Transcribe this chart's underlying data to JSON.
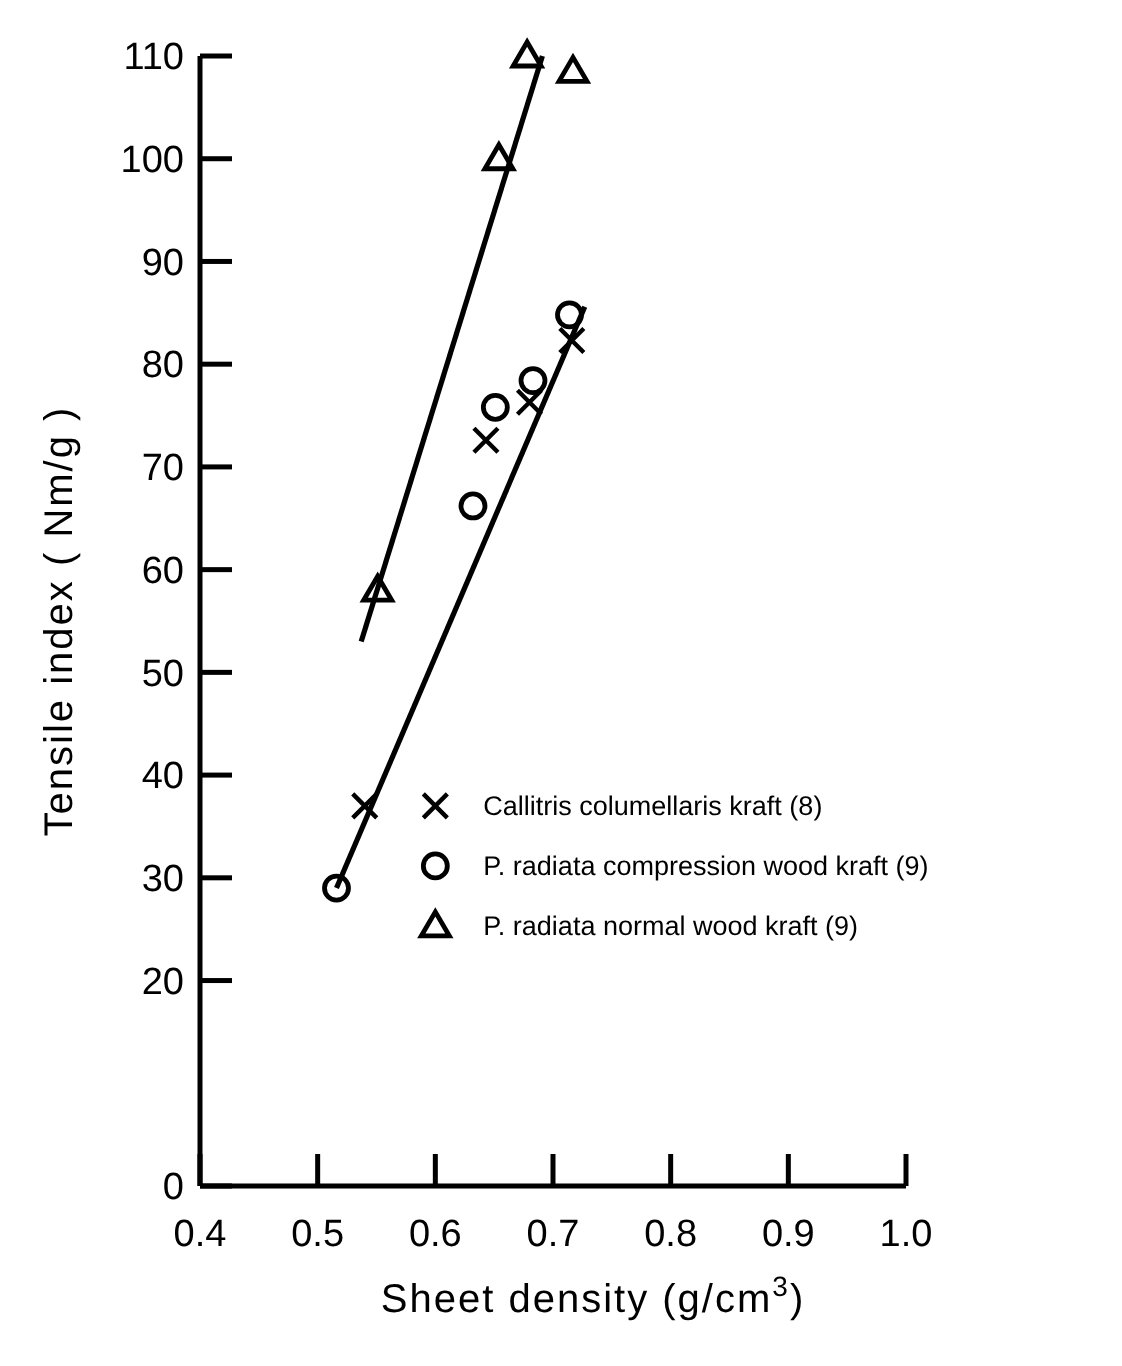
{
  "chart_data": {
    "type": "scatter",
    "xlabel": "Sheet density (g/cm$^{3}$)",
    "ylabel": "Tensile index ( Nm/g )",
    "xlim": [
      0.4,
      1.0
    ],
    "xticks": [
      0.4,
      0.5,
      0.6,
      0.7,
      0.8,
      0.9,
      {
        "value": 1.0,
        "label": "1.0"
      }
    ],
    "ylim": [
      0,
      110
    ],
    "yticks": [
      0,
      20,
      30,
      40,
      50,
      60,
      70,
      80,
      90,
      100,
      110
    ],
    "grid": false,
    "legend": "bottom right",
    "series": [
      {
        "name": "Callitris columellaris kraft (8)",
        "color": "#000000",
        "marker": "cross",
        "x": [
          0.54,
          0.643,
          0.68,
          0.716
        ],
        "values": [
          37,
          72.6,
          76.3,
          82.3
        ]
      },
      {
        "name": "P. radiata compression wood kraft (9)",
        "color": "#000000",
        "marker": "circle",
        "x": [
          0.516,
          0.632,
          0.651,
          0.683,
          0.714
        ],
        "values": [
          29,
          66.2,
          75.8,
          78.4,
          84.8
        ]
      },
      {
        "name": "P. radiata normal wood kraft (9)",
        "color": "#000000",
        "marker": "triangle",
        "x": [
          0.551,
          0.654,
          0.678,
          0.717
        ],
        "values": [
          58,
          100,
          110,
          108.5
        ]
      },
      {
        "type": "line",
        "color": "#000000",
        "line_style": "solid",
        "marker": "none",
        "x": [
          0.537,
          0.691
        ],
        "values": [
          53,
          110
        ]
      },
      {
        "type": "line",
        "color": "#000000",
        "line_style": "solid",
        "marker": "none",
        "x": [
          0.516,
          0.727
        ],
        "values": [
          29,
          85.6
        ]
      }
    ]
  }
}
